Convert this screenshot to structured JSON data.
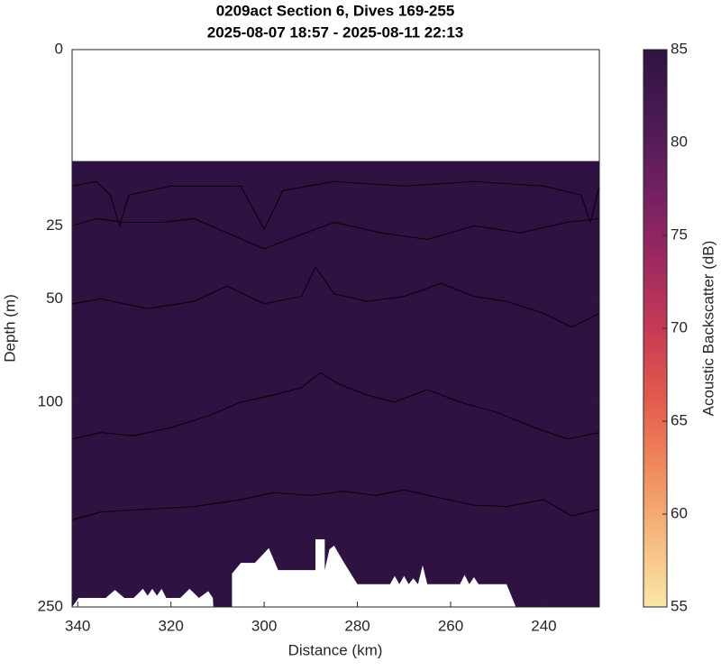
{
  "chart_data": {
    "type": "contour",
    "title": "0209act Section 6, Dives 169-255",
    "subtitle": "2025-08-07 18:57 - 2025-08-11 22:13",
    "x_label": "Distance (km)",
    "y_label": "Depth (m)",
    "colorbar_label": "Acoustic Backscatter (dB)",
    "xlim": [
      341.2,
      228.1
    ],
    "xticks": [
      340,
      320,
      300,
      280,
      260,
      240
    ],
    "ylim": [
      0,
      250
    ],
    "yticks": [
      0,
      25,
      50,
      100,
      250
    ],
    "yscale": "sqrt",
    "y_reversed": true,
    "clim": [
      55,
      85
    ],
    "cticks": [
      55,
      60,
      65,
      70,
      75,
      80,
      85
    ],
    "colormap": [
      "#fbe7a8",
      "#f6b97f",
      "#f08a5b",
      "#e35a4d",
      "#c53a54",
      "#9c2960",
      "#721f62",
      "#4a1a55",
      "#2e1342"
    ],
    "field_color": "#2e1342",
    "data_top_depth": 10,
    "contour_color": "#000000",
    "seafloor_color": "#ffffff",
    "contours": [
      {
        "x": [
          341.2,
          336,
          333,
          331,
          329,
          320,
          305,
          300,
          296,
          285,
          270,
          255,
          240,
          232,
          230,
          228.1
        ],
        "depth": [
          15,
          14,
          17,
          25,
          17,
          15,
          15,
          26,
          16,
          14,
          15,
          14,
          15,
          17,
          24,
          15
        ]
      },
      {
        "x": [
          341.2,
          336,
          330,
          322,
          315,
          308,
          300,
          293,
          285,
          275,
          265,
          255,
          245,
          235,
          228.1
        ],
        "depth": [
          25,
          23,
          24,
          24,
          23,
          27,
          32,
          28,
          24,
          27,
          29,
          25,
          27,
          24,
          23
        ]
      },
      {
        "x": [
          341.2,
          335,
          325,
          315,
          308,
          300,
          292,
          289,
          285,
          278,
          270,
          262,
          255,
          248,
          240,
          234,
          228.1
        ],
        "depth": [
          52,
          50,
          54,
          51,
          45,
          52,
          49,
          38,
          48,
          51,
          49,
          44,
          49,
          51,
          56,
          62,
          56
        ]
      },
      {
        "x": [
          341.2,
          335,
          328,
          320,
          312,
          305,
          298,
          292,
          288,
          284,
          278,
          272,
          265,
          258,
          250,
          242,
          235,
          228.1
        ],
        "depth": [
          122,
          118,
          120,
          115,
          108,
          100,
          96,
          92,
          84,
          90,
          96,
          100,
          93,
          100,
          106,
          115,
          122,
          118
        ]
      },
      {
        "x": [
          341.2,
          335,
          325,
          315,
          305,
          298,
          290,
          283,
          276,
          270,
          262,
          255,
          248,
          240,
          234,
          228.1
        ],
        "depth": [
          178,
          172,
          170,
          168,
          163,
          158,
          160,
          157,
          160,
          156,
          162,
          167,
          168,
          163,
          175,
          170
        ]
      }
    ],
    "seafloor": {
      "x": [
        341.2,
        339.8,
        334,
        332,
        330,
        328,
        326,
        325,
        324,
        323,
        322,
        321,
        318,
        316,
        314,
        312,
        311,
        310.9,
        306.9,
        306.9,
        305,
        302,
        299,
        297,
        289,
        289,
        287,
        287,
        286,
        285,
        283,
        280,
        273,
        272,
        271,
        270,
        269,
        268,
        267,
        266,
        265,
        258,
        257,
        256,
        255,
        254,
        248,
        246,
        228.1
      ],
      "depth": [
        250,
        242,
        242,
        235,
        242,
        242,
        234,
        240,
        234,
        240,
        234,
        242,
        242,
        234,
        242,
        236,
        242,
        250,
        250,
        221,
        212,
        212,
        200,
        218,
        218,
        193,
        193,
        218,
        201,
        198,
        211,
        230,
        230,
        223,
        230,
        223,
        230,
        225,
        230,
        214,
        230,
        230,
        222,
        230,
        224,
        230,
        230,
        250,
        250
      ]
    }
  }
}
